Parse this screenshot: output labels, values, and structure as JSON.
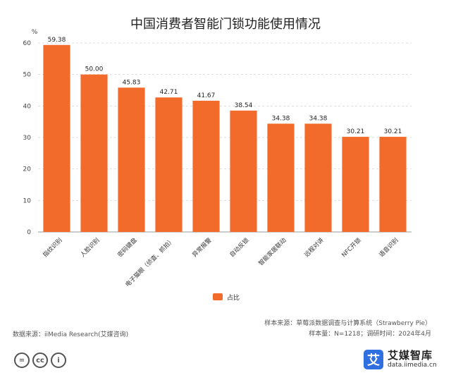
{
  "chart_data": {
    "type": "bar",
    "title": "中国消费者智能门锁功能使用情况",
    "ylabel": "%",
    "ylim": [
      0,
      60
    ],
    "yticks": [
      0,
      10,
      20,
      30,
      40,
      50,
      60
    ],
    "categories": [
      "指纹识别",
      "人脸识别",
      "密码键盘",
      "电子猫眼（侦查、抓拍）",
      "异常报警",
      "自动反锁",
      "智能家居联动",
      "远程对讲",
      "NFC开锁",
      "语音识别"
    ],
    "series": [
      {
        "name": "占比",
        "values": [
          59.38,
          50.0,
          45.83,
          42.71,
          41.67,
          38.54,
          34.38,
          34.38,
          30.21,
          30.21
        ],
        "labels": [
          "59.38",
          "50.00",
          "45.83",
          "42.71",
          "41.67",
          "38.54",
          "34.38",
          "34.38",
          "30.21",
          "30.21"
        ]
      }
    ],
    "grid": true,
    "legend": "bottom-center",
    "color": "#F26B2A"
  },
  "footer": {
    "sample_source": "样本来源：草莓派数据调查与计算系统（Strawberry Pie）",
    "sample_size": "样本量：N=1218；调研时间：2024年4月",
    "data_source": "数据来源：iiMedia Research(艾媒咨询)"
  },
  "brand": {
    "logo_char": "艾",
    "name": "艾媒智库",
    "url": "data.iimedia.cn"
  },
  "license_icons": [
    "=",
    "cc",
    "i"
  ]
}
